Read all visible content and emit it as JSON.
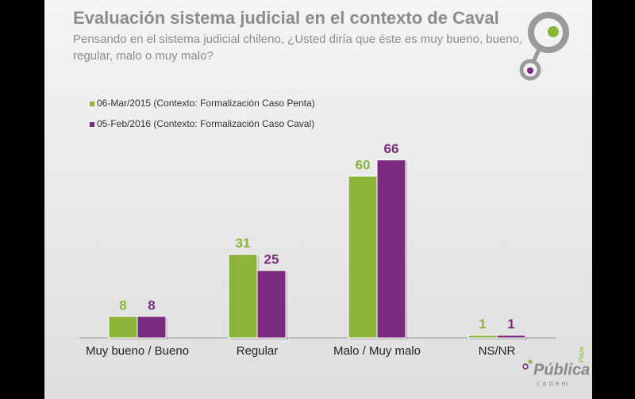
{
  "chart_data": {
    "type": "bar",
    "title": "Evaluación sistema judicial en el contexto de Caval",
    "subtitle": [
      "Pensando en el sistema judicial chileno, ¿Usted diría que éste es muy bueno, bueno,",
      "regular, malo o muy malo?"
    ],
    "categories": [
      "Muy bueno / Bueno",
      "Regular",
      "Malo / Muy malo",
      "NS/NR"
    ],
    "series": [
      {
        "name": "06-Mar/2015 (Contexto: Formalización Caso Penta)",
        "color": "#8cb43a",
        "values": [
          8,
          31,
          60,
          1
        ]
      },
      {
        "name": "05-Feb/2016 (Contexto: Formalización Caso Caval)",
        "color": "#7b2a80",
        "values": [
          8,
          25,
          66,
          1
        ]
      }
    ],
    "logo": {
      "top": "Plaza",
      "main": "Pública",
      "bottom": "cadem"
    }
  }
}
